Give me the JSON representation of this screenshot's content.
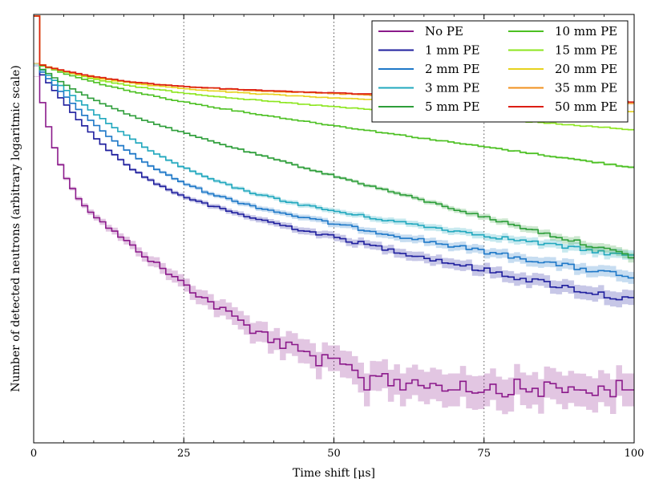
{
  "chart_data": {
    "type": "line",
    "title": "",
    "xlabel": "Time shift [μs]",
    "ylabel": "Number of detected neutrons (arbitrary logaritmic scale)",
    "xlim": [
      0,
      100
    ],
    "xticks": [
      0,
      25,
      50,
      75,
      100
    ],
    "ylim": [
      0,
      1
    ],
    "yscale": "log (arbitrary, no tick labels)",
    "grid": "vertical dotted at x ticks",
    "legend_position": "top-right",
    "series": [
      {
        "name": "No PE",
        "color": "#8B1A8B",
        "tau": 1.6,
        "kind": "early"
      },
      {
        "name": "1 mm PE",
        "color": "#1F1F9E",
        "tau": 5.5,
        "kind": "early"
      },
      {
        "name": "2 mm PE",
        "color": "#1E78C8",
        "tau": 6.8,
        "kind": "early"
      },
      {
        "name": "3 mm PE",
        "color": "#21A8BE",
        "tau": 8.5,
        "kind": "early"
      },
      {
        "name": "5 mm PE",
        "color": "#2E9E3A",
        "tau": 30,
        "kind": "mid"
      },
      {
        "name": "10 mm PE",
        "color": "#4CC022",
        "tau": 60,
        "kind": "slow"
      },
      {
        "name": "15 mm PE",
        "color": "#8CE61E",
        "tau": 110,
        "kind": "slow"
      },
      {
        "name": "20 mm PE",
        "color": "#E6D21E",
        "tau": 180,
        "kind": "slow"
      },
      {
        "name": "35 mm PE",
        "color": "#F0901E",
        "tau": 260,
        "kind": "slow"
      },
      {
        "name": "50 mm PE",
        "color": "#DC1E14",
        "tau": 280,
        "kind": "slow"
      }
    ]
  }
}
